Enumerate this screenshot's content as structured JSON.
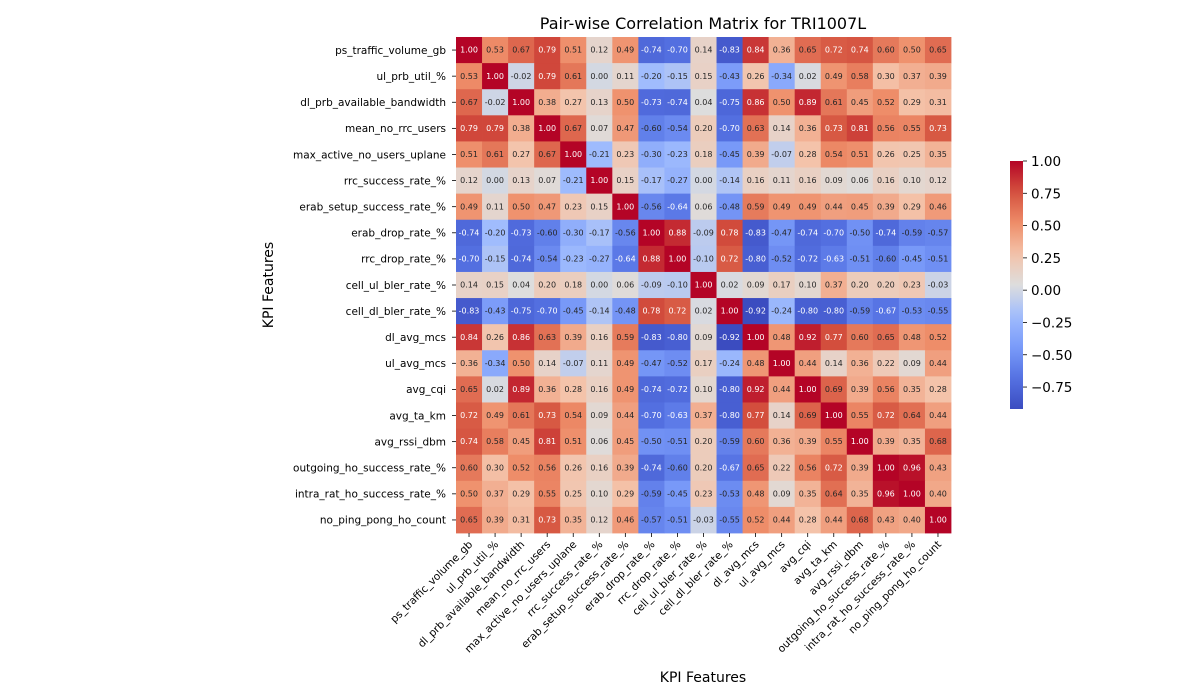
{
  "chart_data": {
    "type": "heatmap",
    "title": "Pair-wise Correlation Matrix for TRI1007L",
    "xlabel": "KPI Features",
    "ylabel": "KPI Features",
    "colormap": "coolwarm",
    "vmin": -0.92,
    "vmax": 1.0,
    "colorbar_ticks": [
      "1.00",
      "0.75",
      "0.50",
      "0.25",
      "0.00",
      "−0.25",
      "−0.50",
      "−0.75"
    ],
    "colorbar_tick_values": [
      1.0,
      0.75,
      0.5,
      0.25,
      0.0,
      -0.25,
      -0.5,
      -0.75
    ],
    "labels": [
      "ps_traffic_volume_gb",
      "ul_prb_util_%",
      "dl_prb_available_bandwidth",
      "mean_no_rrc_users",
      "max_active_no_users_uplane",
      "rrc_success_rate_%",
      "erab_setup_success_rate_%",
      "erab_drop_rate_%",
      "rrc_drop_rate_%",
      "cell_ul_bler_rate_%",
      "cell_dl_bler_rate_%",
      "dl_avg_mcs",
      "ul_avg_mcs",
      "avg_cqi",
      "avg_ta_km",
      "avg_rssi_dbm",
      "outgoing_ho_success_rate_%",
      "intra_rat_ho_success_rate_%",
      "no_ping_pong_ho_count"
    ],
    "matrix": [
      [
        1.0,
        0.53,
        0.67,
        0.79,
        0.51,
        0.12,
        0.49,
        -0.74,
        -0.7,
        0.14,
        -0.83,
        0.84,
        0.36,
        0.65,
        0.72,
        0.74,
        0.6,
        0.5,
        0.65
      ],
      [
        0.53,
        1.0,
        -0.02,
        0.79,
        0.61,
        -0.0,
        0.11,
        -0.2,
        -0.15,
        0.15,
        -0.43,
        0.26,
        -0.34,
        0.02,
        0.49,
        0.58,
        0.3,
        0.37,
        0.39
      ],
      [
        0.67,
        -0.02,
        1.0,
        0.38,
        0.27,
        0.13,
        0.5,
        -0.73,
        -0.74,
        0.04,
        -0.75,
        0.86,
        0.5,
        0.89,
        0.61,
        0.45,
        0.52,
        0.29,
        0.31
      ],
      [
        0.79,
        0.79,
        0.38,
        1.0,
        0.67,
        0.07,
        0.47,
        -0.6,
        -0.54,
        0.2,
        -0.7,
        0.63,
        0.14,
        0.36,
        0.73,
        0.81,
        0.56,
        0.55,
        0.73
      ],
      [
        0.51,
        0.61,
        0.27,
        0.67,
        1.0,
        -0.21,
        0.23,
        -0.3,
        -0.23,
        0.18,
        -0.45,
        0.39,
        -0.07,
        0.28,
        0.54,
        0.51,
        0.26,
        0.25,
        0.35
      ],
      [
        0.12,
        -0.0,
        0.13,
        0.07,
        -0.21,
        1.0,
        0.15,
        -0.17,
        -0.27,
        0.0,
        -0.14,
        0.16,
        0.11,
        0.16,
        0.09,
        0.06,
        0.16,
        0.1,
        0.12
      ],
      [
        0.49,
        0.11,
        0.5,
        0.47,
        0.23,
        0.15,
        1.0,
        -0.56,
        -0.64,
        0.06,
        -0.48,
        0.59,
        0.49,
        0.49,
        0.44,
        0.45,
        0.39,
        0.29,
        0.46
      ],
      [
        -0.74,
        -0.2,
        -0.73,
        -0.6,
        -0.3,
        -0.17,
        -0.56,
        1.0,
        0.88,
        -0.09,
        0.78,
        -0.83,
        -0.47,
        -0.74,
        -0.7,
        -0.5,
        -0.74,
        -0.59,
        -0.57
      ],
      [
        -0.7,
        -0.15,
        -0.74,
        -0.54,
        -0.23,
        -0.27,
        -0.64,
        0.88,
        1.0,
        -0.1,
        0.72,
        -0.8,
        -0.52,
        -0.72,
        -0.63,
        -0.51,
        -0.6,
        -0.45,
        -0.51
      ],
      [
        0.14,
        0.15,
        0.04,
        0.2,
        0.18,
        0.0,
        0.06,
        -0.09,
        -0.1,
        1.0,
        0.02,
        0.09,
        0.17,
        0.1,
        0.37,
        0.2,
        0.2,
        0.23,
        -0.03
      ],
      [
        -0.83,
        -0.43,
        -0.75,
        -0.7,
        -0.45,
        -0.14,
        -0.48,
        0.78,
        0.72,
        0.02,
        1.0,
        -0.92,
        -0.24,
        -0.8,
        -0.8,
        -0.59,
        -0.67,
        -0.53,
        -0.55
      ],
      [
        0.84,
        0.26,
        0.86,
        0.63,
        0.39,
        0.16,
        0.59,
        -0.83,
        -0.8,
        0.09,
        -0.92,
        1.0,
        0.48,
        0.92,
        0.77,
        0.6,
        0.65,
        0.48,
        0.52
      ],
      [
        0.36,
        -0.34,
        0.5,
        0.14,
        -0.07,
        0.11,
        0.49,
        -0.47,
        -0.52,
        0.17,
        -0.24,
        0.48,
        1.0,
        0.44,
        0.14,
        0.36,
        0.22,
        0.09,
        0.44
      ],
      [
        0.65,
        0.02,
        0.89,
        0.36,
        0.28,
        0.16,
        0.49,
        -0.74,
        -0.72,
        0.1,
        -0.8,
        0.92,
        0.44,
        1.0,
        0.69,
        0.39,
        0.56,
        0.35,
        0.28
      ],
      [
        0.72,
        0.49,
        0.61,
        0.73,
        0.54,
        0.09,
        0.44,
        -0.7,
        -0.63,
        0.37,
        -0.8,
        0.77,
        0.14,
        0.69,
        1.0,
        0.55,
        0.72,
        0.64,
        0.44
      ],
      [
        0.74,
        0.58,
        0.45,
        0.81,
        0.51,
        0.06,
        0.45,
        -0.5,
        -0.51,
        0.2,
        -0.59,
        0.6,
        0.36,
        0.39,
        0.55,
        1.0,
        0.39,
        0.35,
        0.68
      ],
      [
        0.6,
        0.3,
        0.52,
        0.56,
        0.26,
        0.16,
        0.39,
        -0.74,
        -0.6,
        0.2,
        -0.67,
        0.65,
        0.22,
        0.56,
        0.72,
        0.39,
        1.0,
        0.96,
        0.43
      ],
      [
        0.5,
        0.37,
        0.29,
        0.55,
        0.25,
        0.1,
        0.29,
        -0.59,
        -0.45,
        0.23,
        -0.53,
        0.48,
        0.09,
        0.35,
        0.64,
        0.35,
        0.96,
        1.0,
        0.4
      ],
      [
        0.65,
        0.39,
        0.31,
        0.73,
        0.35,
        0.12,
        0.46,
        -0.57,
        -0.51,
        -0.03,
        -0.55,
        0.52,
        0.44,
        0.28,
        0.44,
        0.68,
        0.43,
        0.4,
        1.0
      ]
    ]
  }
}
